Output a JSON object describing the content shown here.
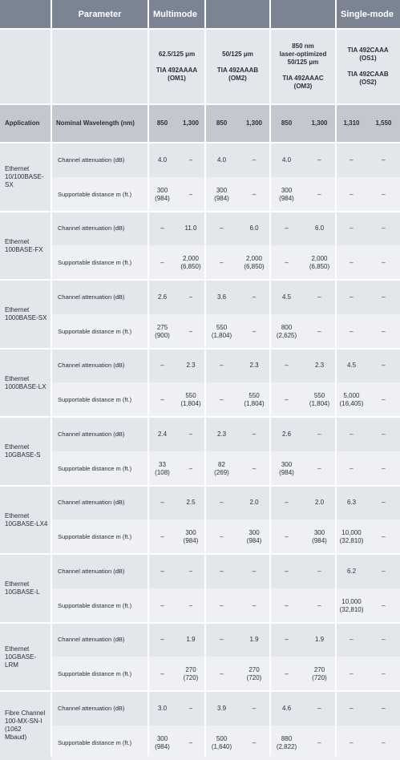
{
  "header": {
    "parameter": "Parameter",
    "multimode": "Multimode",
    "singlemode": "Single-mode"
  },
  "fibers": [
    {
      "text": "62.5/125 μm\n\nTIA 492AAAA\n(OM1)"
    },
    {
      "text": "50/125 μm\n\nTIA 492AAAB\n(OM2)"
    },
    {
      "text": "850 nm\nlaser-optimized\n50/125 μm\n\nTIA 492AAAC\n(OM3)"
    },
    {
      "text": "TIA 492CAAA\n(OS1)\n\nTIA 492CAAB\n(OS2)"
    }
  ],
  "band": {
    "application": "Application",
    "wavelength_label": "Nominal Wavelength (nm)",
    "wavelengths": [
      "850",
      "1,300",
      "850",
      "1,300",
      "850",
      "1,300",
      "1,310",
      "1,550"
    ]
  },
  "applications": [
    {
      "name": "Ethernet\n10/100BASE-\nSX",
      "rows": [
        {
          "label": "Channel attenuation (dB)",
          "values": [
            "4.0",
            "–",
            "4.0",
            "–",
            "4.0",
            "–",
            "–",
            "–"
          ]
        },
        {
          "label": "Supportable distance m (ft.)",
          "values": [
            "300\n(984)",
            "–",
            "300\n(984)",
            "–",
            "300\n(984)",
            "–",
            "–",
            "–"
          ]
        }
      ]
    },
    {
      "name": "Ethernet\n100BASE-FX",
      "rows": [
        {
          "label": "Channel attenuation (dB)",
          "values": [
            "–",
            "11.0",
            "–",
            "6.0",
            "–",
            "6.0",
            "–",
            "–"
          ]
        },
        {
          "label": "Supportable distance m (ft.)",
          "values": [
            "–",
            "2,000\n(6,850)",
            "–",
            "2,000\n(6,850)",
            "–",
            "2,000\n(6,850)",
            "–",
            "–"
          ]
        }
      ]
    },
    {
      "name": "Ethernet\n1000BASE-SX",
      "rows": [
        {
          "label": "Channel attenuation (dB)",
          "values": [
            "2.6",
            "–",
            "3.6",
            "–",
            "4.5",
            "–",
            "–",
            "–"
          ]
        },
        {
          "label": "Supportable distance m (ft.)",
          "values": [
            "275\n(900)",
            "–",
            "550\n(1,804)",
            "–",
            "800\n(2,625)",
            "–",
            "–",
            "–"
          ]
        }
      ]
    },
    {
      "name": "Ethernet\n1000BASE-LX",
      "rows": [
        {
          "label": "Channel attenuation (dB)",
          "values": [
            "–",
            "2.3",
            "–",
            "2.3",
            "–",
            "2.3",
            "4.5",
            "–"
          ]
        },
        {
          "label": "Supportable distance m (ft.)",
          "values": [
            "–",
            "550\n(1,804)",
            "–",
            "550\n(1,804)",
            "–",
            "550\n(1,804)",
            "5,000\n(16,405)",
            "–"
          ]
        }
      ]
    },
    {
      "name": "Ethernet\n10GBASE-S",
      "rows": [
        {
          "label": "Channel attenuation (dB)",
          "values": [
            "2.4",
            "–",
            "2.3",
            "–",
            "2.6",
            "–",
            "–",
            "–"
          ]
        },
        {
          "label": "Supportable distance m (ft.)",
          "values": [
            "33\n(108)",
            "–",
            "82\n(269)",
            "–",
            "300\n(984)",
            "–",
            "–",
            "–"
          ]
        }
      ]
    },
    {
      "name": "Ethernet\n10GBASE-LX4",
      "rows": [
        {
          "label": "Channel attenuation (dB)",
          "values": [
            "–",
            "2.5",
            "–",
            "2.0",
            "–",
            "2.0",
            "6.3",
            "–"
          ]
        },
        {
          "label": "Supportable distance m (ft.)",
          "values": [
            "–",
            "300\n(984)",
            "–",
            "300\n(984)",
            "–",
            "300\n(984)",
            "10,000\n(32,810)",
            "–"
          ]
        }
      ]
    },
    {
      "name": "Ethernet\n10GBASE-L",
      "rows": [
        {
          "label": "Channel attenuation (dB)",
          "values": [
            "–",
            "–",
            "–",
            "–",
            "–",
            "–",
            "6.2",
            "–"
          ]
        },
        {
          "label": "Supportable distance m (ft.)",
          "values": [
            "–",
            "–",
            "–",
            "–",
            "–",
            "–",
            "10,000\n(32,810)",
            "–"
          ]
        }
      ]
    },
    {
      "name": "Ethernet\n10GBASE-LRM",
      "rows": [
        {
          "label": "Channel attenuation (dB)",
          "values": [
            "–",
            "1.9",
            "–",
            "1.9",
            "–",
            "1.9",
            "–",
            "–"
          ]
        },
        {
          "label": "Supportable distance m (ft.)",
          "values": [
            "–",
            "270\n(720)",
            "–",
            "270\n(720)",
            "–",
            "270\n(720)",
            "–",
            "–"
          ]
        }
      ]
    },
    {
      "name": "Fibre Channel\n100-MX-SN-I\n(1062\nMbaud)",
      "rows": [
        {
          "label": "Channel attenuation (dB)",
          "values": [
            "3.0",
            "–",
            "3.9",
            "–",
            "4.6",
            "–",
            "–",
            "–"
          ]
        },
        {
          "label": "Supportable distance m (ft.)",
          "values": [
            "300\n(984)",
            "–",
            "500\n(1,640)",
            "–",
            "880\n(2,822)",
            "–",
            "–",
            "–"
          ]
        }
      ]
    }
  ]
}
